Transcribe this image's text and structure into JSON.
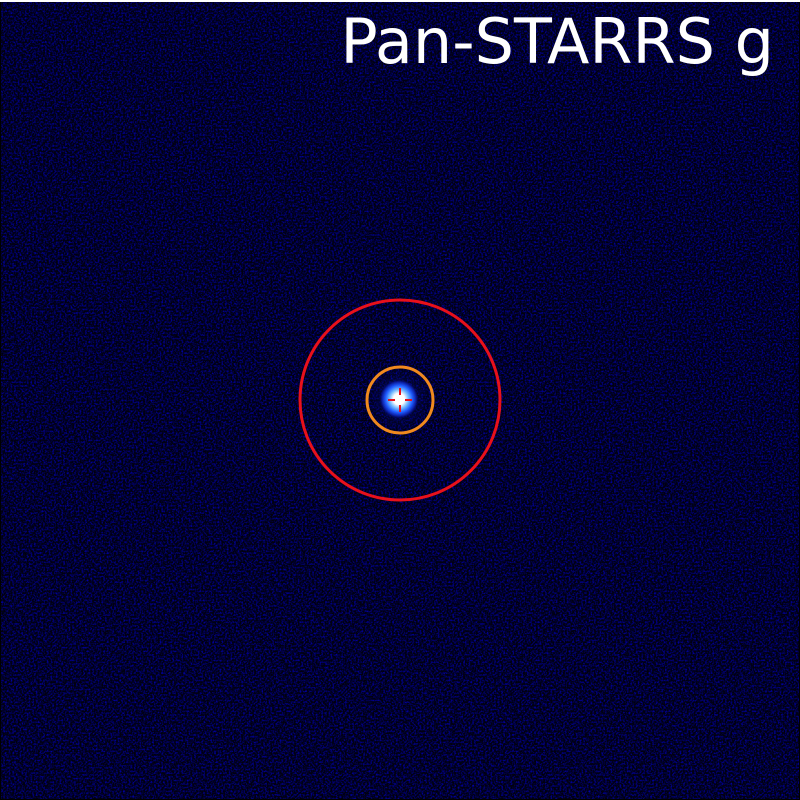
{
  "image": {
    "band_label": "Pan-STARRS g",
    "colormap": "black-blue-white",
    "colors": {
      "background": "#000000",
      "noise": "#00003a",
      "source_core": "#ffffff",
      "source_halo": "#1e5aff",
      "outer_circle": "#e8101a",
      "inner_circle": "#f08a1e",
      "crosshair": "#e8101a",
      "label": "#ffffff"
    },
    "markers": [
      {
        "name": "outer-aperture",
        "shape": "circle",
        "color": "#e8101a"
      },
      {
        "name": "inner-aperture",
        "shape": "circle",
        "color": "#f08a1e"
      },
      {
        "name": "source-crosshair",
        "shape": "crosshair",
        "color": "#e8101a"
      }
    ]
  }
}
